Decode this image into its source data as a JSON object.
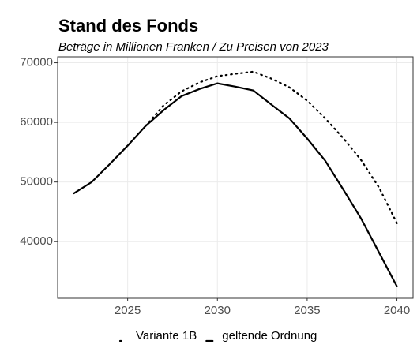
{
  "chart_data": {
    "type": "line",
    "title": "Stand des Fonds",
    "subtitle": "Beträge in Millionen Franken / Zu Preisen von 2023",
    "x": [
      2022,
      2023,
      2024,
      2025,
      2026,
      2027,
      2028,
      2029,
      2030,
      2031,
      2032,
      2033,
      2034,
      2035,
      2036,
      2037,
      2038,
      2039,
      2040
    ],
    "series": [
      {
        "name": "Variante 1B",
        "color": "#000000",
        "dash": "dotted",
        "values": [
          null,
          null,
          null,
          null,
          59400,
          62850,
          65200,
          66700,
          67750,
          68150,
          68500,
          67350,
          65900,
          63650,
          60700,
          57400,
          53700,
          49100,
          43100
        ]
      },
      {
        "name": "geltende Ordnung",
        "color": "#000000",
        "dash": "solid",
        "values": [
          48100,
          50000,
          53000,
          56100,
          59400,
          62050,
          64400,
          65600,
          66550,
          66000,
          65350,
          63000,
          60700,
          57300,
          53600,
          48800,
          43900,
          38200,
          32500
        ]
      }
    ],
    "xlim": [
      2021.1,
      2040.9
    ],
    "xticks": [
      2025,
      2030,
      2035,
      2040
    ],
    "ylim": [
      30500,
      71000
    ],
    "yticks": [
      40000,
      50000,
      60000,
      70000
    ],
    "grid": true,
    "legend": "bottom"
  }
}
